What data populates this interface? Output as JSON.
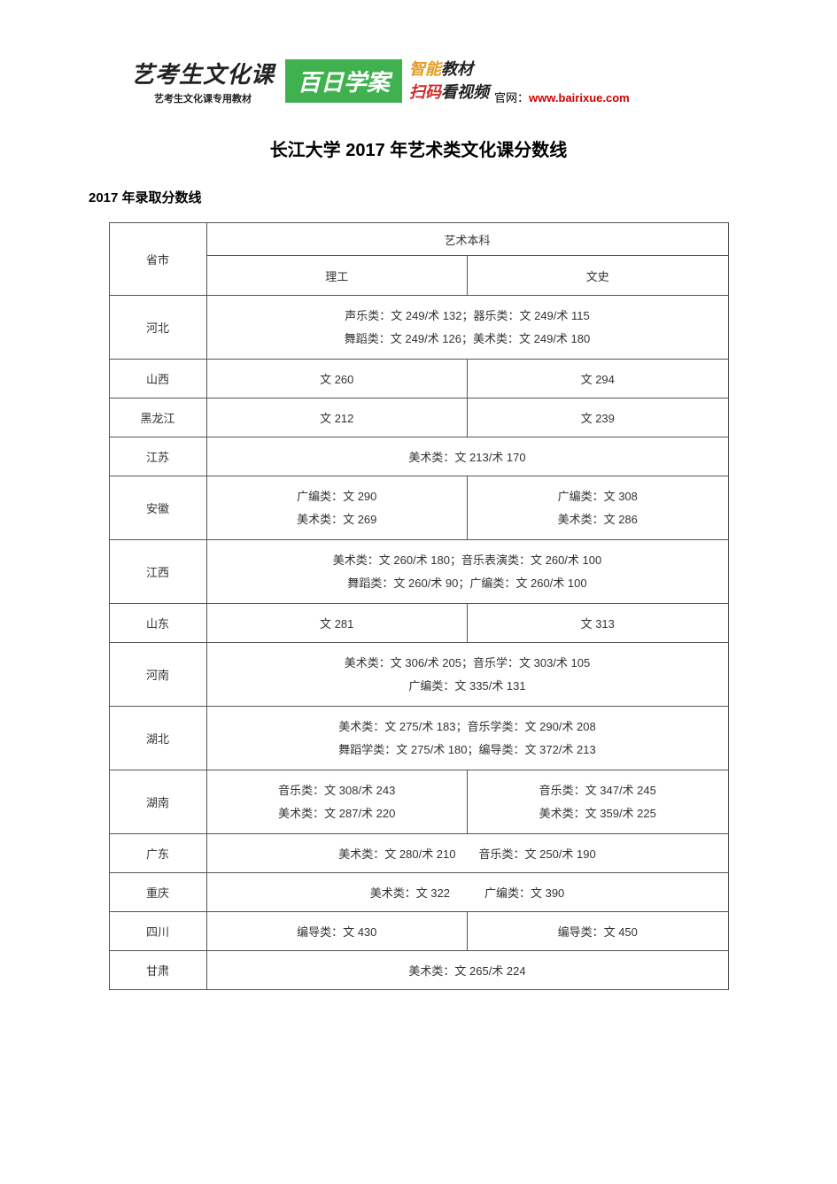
{
  "banner": {
    "left_title": "艺考生文化课",
    "left_sub": "艺考生文化课专用教材",
    "mid": "百日学案",
    "r1_accent": "智能",
    "r1_rest": "教材",
    "r2_accent": "扫码",
    "r2_rest": "看视频",
    "link_label": "官网：",
    "link_url": "www.bairixue.com"
  },
  "title": "长江大学 2017 年艺术类文化课分数线",
  "section": "2017 年录取分数线",
  "headers": {
    "province": "省市",
    "group": "艺术本科",
    "col_sci": "理工",
    "col_lib": "文史"
  },
  "rows": [
    {
      "prov": "河北",
      "span": true,
      "lines": [
        "声乐类：文 249/术 132；器乐类：文 249/术 115",
        "舞蹈类：文 249/术 126；美术类：文 249/术 180"
      ]
    },
    {
      "prov": "山西",
      "sci": "文 260",
      "lib": "文 294"
    },
    {
      "prov": "黑龙江",
      "sci": "文 212",
      "lib": "文 239"
    },
    {
      "prov": "江苏",
      "span": true,
      "lines": [
        "美术类：文 213/术 170"
      ]
    },
    {
      "prov": "安徽",
      "sci_lines": [
        "广编类：文 290",
        "美术类：文 269"
      ],
      "lib_lines": [
        "广编类：文 308",
        "美术类：文 286"
      ]
    },
    {
      "prov": "江西",
      "span": true,
      "lines": [
        "美术类：文 260/术 180；音乐表演类：文 260/术 100",
        "舞蹈类：文 260/术 90；广编类：文 260/术 100"
      ]
    },
    {
      "prov": "山东",
      "sci": "文 281",
      "lib": "文 313"
    },
    {
      "prov": "河南",
      "span": true,
      "lines": [
        "美术类：文 306/术 205；音乐学：文 303/术 105",
        "广编类：文 335/术 131"
      ]
    },
    {
      "prov": "湖北",
      "span": true,
      "lines": [
        "美术类：文 275/术 183；音乐学类：文 290/术 208",
        "舞蹈学类：文 275/术 180；编导类：文 372/术 213"
      ]
    },
    {
      "prov": "湖南",
      "sci_lines": [
        "音乐类：文 308/术 243",
        "美术类：文 287/术 220"
      ],
      "lib_lines": [
        "音乐类：文 347/术 245",
        "美术类：文 359/术 225"
      ]
    },
    {
      "prov": "广东",
      "span": true,
      "lines": [
        "美术类：文 280/术 210　　音乐类：文 250/术 190"
      ]
    },
    {
      "prov": "重庆",
      "span": true,
      "lines": [
        "美术类：文 322　　　广编类：文 390"
      ]
    },
    {
      "prov": "四川",
      "sci": "编导类：文 430",
      "lib": "编导类：文 450"
    },
    {
      "prov": "甘肃",
      "span": true,
      "lines": [
        "美术类：文 265/术 224"
      ]
    }
  ]
}
